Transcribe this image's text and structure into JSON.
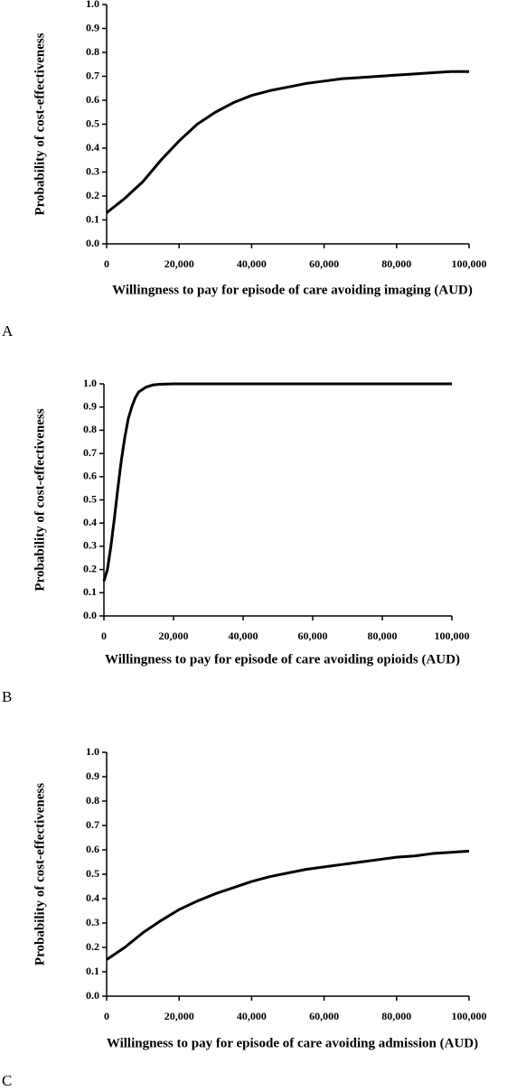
{
  "chart_data": [
    {
      "type": "line",
      "panel": "A",
      "xlabel": "Willingness to pay for episode of care avoiding imaging (AUD)",
      "ylabel": "Probability of cost-effectiveness",
      "x": [
        0,
        5000,
        10000,
        15000,
        20000,
        25000,
        30000,
        35000,
        40000,
        45000,
        50000,
        55000,
        60000,
        65000,
        70000,
        75000,
        80000,
        85000,
        90000,
        95000,
        100000
      ],
      "values": [
        0.13,
        0.19,
        0.26,
        0.35,
        0.43,
        0.5,
        0.55,
        0.59,
        0.62,
        0.64,
        0.655,
        0.67,
        0.68,
        0.69,
        0.695,
        0.7,
        0.705,
        0.71,
        0.715,
        0.72,
        0.72
      ],
      "color": "#000000",
      "xlim": [
        0,
        100000
      ],
      "ylim": [
        0,
        1
      ],
      "xticks": [
        0,
        {
          "value": 20000,
          "label": "20,000"
        },
        {
          "value": 40000,
          "label": "40,000"
        },
        {
          "value": 60000,
          "label": "60,000"
        },
        {
          "value": 80000,
          "label": "80,000"
        },
        {
          "value": 100000,
          "label": "100,000"
        }
      ],
      "yticks": [
        {
          "value": 0,
          "label": "0.0"
        },
        0.1,
        0.2,
        0.3,
        0.4,
        0.5,
        0.6,
        0.7,
        0.8,
        0.9,
        {
          "value": 1,
          "label": "1.0"
        }
      ]
    },
    {
      "type": "line",
      "panel": "B",
      "xlabel": "Willingness to pay for episode of care avoiding opioids (AUD)",
      "ylabel": "Probability of cost-effectiveness",
      "x": [
        0,
        1000,
        2000,
        3000,
        4000,
        5000,
        6000,
        7000,
        8000,
        9000,
        10000,
        12000,
        14000,
        16000,
        20000,
        40000,
        60000,
        80000,
        100000
      ],
      "values": [
        0.15,
        0.2,
        0.3,
        0.42,
        0.55,
        0.67,
        0.77,
        0.85,
        0.9,
        0.94,
        0.965,
        0.985,
        0.995,
        0.998,
        1,
        1,
        1,
        1,
        1
      ],
      "color": "#000000",
      "xlim": [
        0,
        100000
      ],
      "ylim": [
        0,
        1
      ],
      "xticks": [
        0,
        {
          "value": 20000,
          "label": "20,000"
        },
        {
          "value": 40000,
          "label": "40,000"
        },
        {
          "value": 60000,
          "label": "60,000"
        },
        {
          "value": 80000,
          "label": "80,000"
        },
        {
          "value": 100000,
          "label": "100,000"
        }
      ],
      "yticks": [
        {
          "value": 0,
          "label": "0.0"
        },
        0.1,
        0.2,
        0.3,
        0.4,
        0.5,
        0.6,
        0.7,
        0.8,
        0.9,
        {
          "value": 1,
          "label": "1.0"
        }
      ]
    },
    {
      "type": "line",
      "panel": "C",
      "xlabel": "Willingness to pay for episode of care avoiding admission (AUD)",
      "ylabel": "Probability of cost-effectiveness",
      "x": [
        0,
        5000,
        10000,
        15000,
        20000,
        25000,
        30000,
        35000,
        40000,
        45000,
        50000,
        55000,
        60000,
        65000,
        70000,
        75000,
        80000,
        85000,
        90000,
        95000,
        100000
      ],
      "values": [
        0.15,
        0.2,
        0.26,
        0.31,
        0.355,
        0.39,
        0.42,
        0.445,
        0.47,
        0.49,
        0.505,
        0.52,
        0.53,
        0.54,
        0.55,
        0.56,
        0.57,
        0.575,
        0.585,
        0.59,
        0.595
      ],
      "color": "#000000",
      "xlim": [
        0,
        100000
      ],
      "ylim": [
        0,
        1
      ],
      "xticks": [
        0,
        {
          "value": 20000,
          "label": "20,000"
        },
        {
          "value": 40000,
          "label": "40,000"
        },
        {
          "value": 60000,
          "label": "60,000"
        },
        {
          "value": 80000,
          "label": "80,000"
        },
        {
          "value": 100000,
          "label": "100,000"
        }
      ],
      "yticks": [
        {
          "value": 0,
          "label": "0.0"
        },
        0.1,
        0.2,
        0.3,
        0.4,
        0.5,
        0.6,
        0.7,
        0.8,
        0.9,
        {
          "value": 1,
          "label": "1.0"
        }
      ]
    }
  ]
}
